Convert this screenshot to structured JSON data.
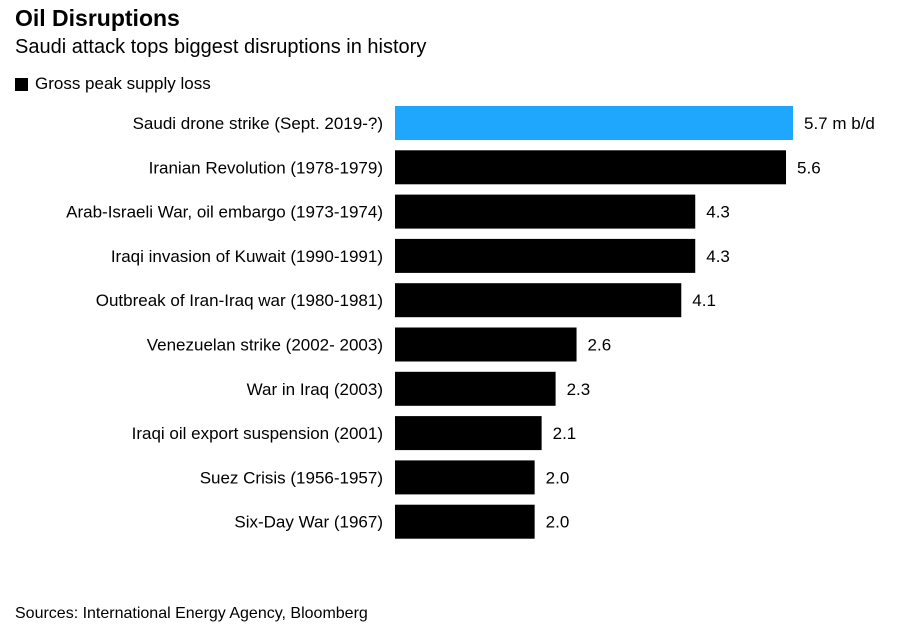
{
  "chart_data": {
    "type": "bar",
    "orientation": "horizontal",
    "title": "Oil Disruptions",
    "subtitle": "Saudi attack tops biggest disruptions in history",
    "legend": {
      "label": "Gross peak supply loss",
      "color": "#000000",
      "placement": "top-left"
    },
    "categories": [
      "Saudi drone strike (Sept. 2019-?)",
      "Iranian Revolution (1978-1979)",
      "Arab-Israeli War, oil embargo (1973-1974)",
      "Iraqi invasion of Kuwait (1990-1991)",
      "Outbreak of Iran-Iraq war (1980-1981)",
      "Venezuelan strike (2002- 2003)",
      "War in Iraq (2003)",
      "Iraqi oil export suspension (2001)",
      "Suez Crisis (1956-1957)",
      "Six-Day War (1967)"
    ],
    "values": [
      5.7,
      5.6,
      4.3,
      4.3,
      4.1,
      2.6,
      2.3,
      2.1,
      2.0,
      2.0
    ],
    "value_labels": [
      "5.7 m b/d",
      "5.6",
      "4.3",
      "4.3",
      "4.1",
      "2.6",
      "2.3",
      "2.1",
      "2.0",
      "2.0"
    ],
    "bar_colors": [
      "#1ea7fd",
      "#000000",
      "#000000",
      "#000000",
      "#000000",
      "#000000",
      "#000000",
      "#000000",
      "#000000",
      "#000000"
    ],
    "xlim": [
      0,
      5.7
    ],
    "grid": false
  },
  "footer": {
    "source": "Sources: International Energy Agency, Bloomberg"
  }
}
